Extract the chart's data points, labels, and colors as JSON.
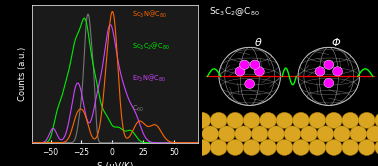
{
  "xlabel": "S (μV/K)",
  "ylabel": "Counts (a.u.)",
  "xlim": [
    -65,
    70
  ],
  "ylim": [
    0,
    1.05
  ],
  "bg_color": "#000000",
  "plot_bg": "#1a1a1a",
  "colors": {
    "sc3n": "#ff6600",
    "sc3c2": "#00ee00",
    "er3n": "#cc44ff",
    "c60": "#808080"
  },
  "legend_labels": [
    "Sc$_3$N@C$_{80}$",
    "Sc$_3$C$_2$@C$_{80}$",
    "Er$_3$N@C$_{80}$",
    "C$_{60}$"
  ],
  "legend_colors": [
    "#ff6600",
    "#00ee00",
    "#cc44ff",
    "#808080"
  ],
  "right_title": "Sc$_3$C$_2$@C$_{80}$",
  "theta_label": "θ",
  "phi_label": "Φ",
  "gold_color": "#DAA520",
  "gold_edge": "#B8860B",
  "cage_color": "#c0c0c0",
  "atom_color": "#ff00ff",
  "red_line": "#ff0000",
  "green_wave": "#00ff00"
}
